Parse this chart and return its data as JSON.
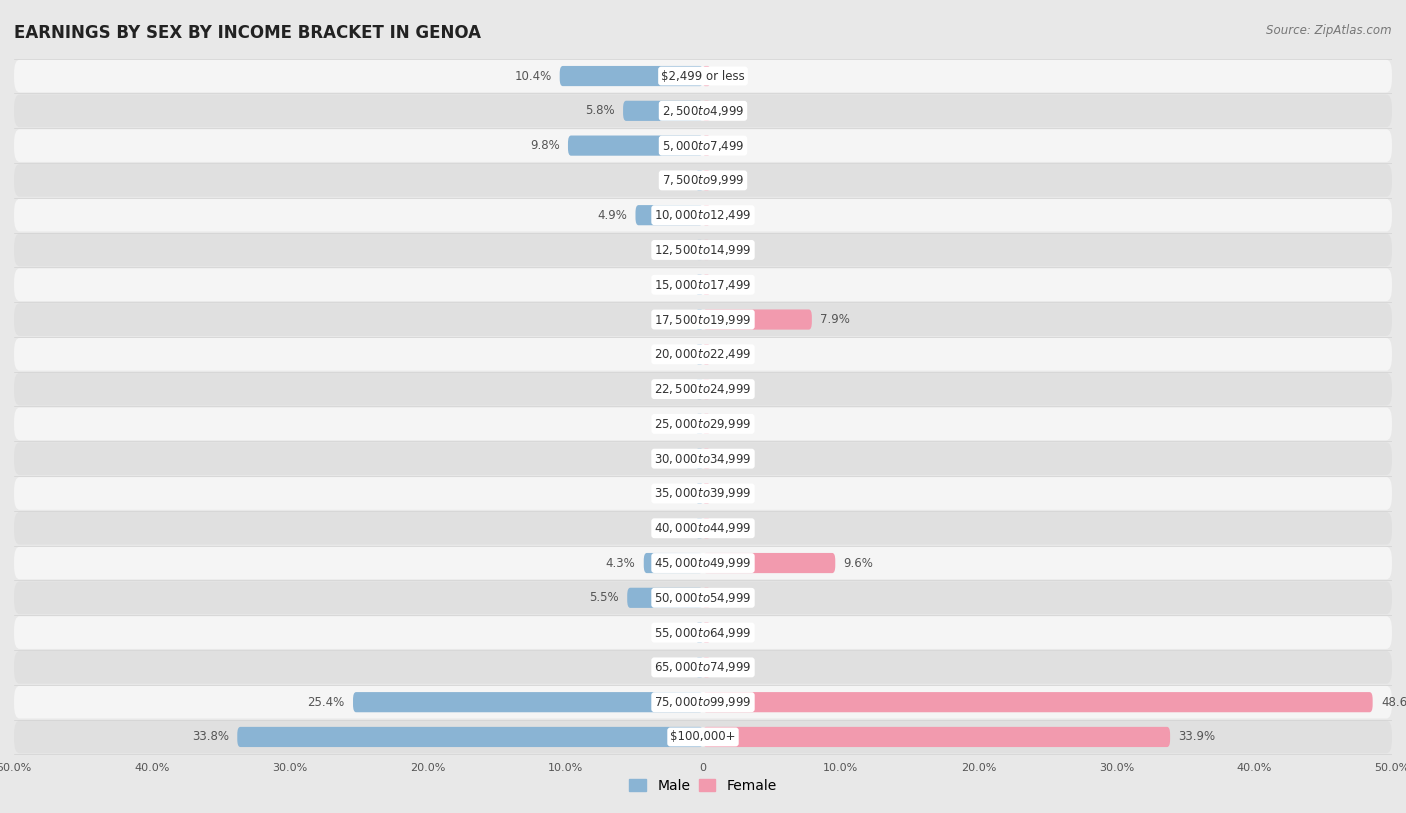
{
  "title": "EARNINGS BY SEX BY INCOME BRACKET IN GENOA",
  "source": "Source: ZipAtlas.com",
  "categories": [
    "$2,499 or less",
    "$2,500 to $4,999",
    "$5,000 to $7,499",
    "$7,500 to $9,999",
    "$10,000 to $12,499",
    "$12,500 to $14,999",
    "$15,000 to $17,499",
    "$17,500 to $19,999",
    "$20,000 to $22,499",
    "$22,500 to $24,999",
    "$25,000 to $29,999",
    "$30,000 to $34,999",
    "$35,000 to $39,999",
    "$40,000 to $44,999",
    "$45,000 to $49,999",
    "$50,000 to $54,999",
    "$55,000 to $64,999",
    "$65,000 to $74,999",
    "$75,000 to $99,999",
    "$100,000+"
  ],
  "male": [
    10.4,
    5.8,
    9.8,
    0.0,
    4.9,
    0.0,
    0.0,
    0.0,
    0.0,
    0.0,
    0.0,
    0.0,
    0.0,
    0.0,
    4.3,
    5.5,
    0.0,
    0.0,
    25.4,
    33.8
  ],
  "female": [
    0.0,
    0.0,
    0.0,
    0.0,
    0.0,
    0.0,
    0.0,
    7.9,
    0.0,
    0.0,
    0.0,
    0.0,
    0.0,
    0.0,
    9.6,
    0.0,
    0.0,
    0.0,
    48.6,
    33.9
  ],
  "male_color": "#8ab4d4",
  "female_color": "#f29aae",
  "bar_height": 0.58,
  "xlim": 50.0,
  "background_color": "#e8e8e8",
  "row_color_odd": "#f5f5f5",
  "row_color_even": "#e0e0e0",
  "title_fontsize": 12,
  "label_fontsize": 8.5,
  "category_fontsize": 8.5,
  "source_fontsize": 8.5,
  "tick_fontsize": 8
}
